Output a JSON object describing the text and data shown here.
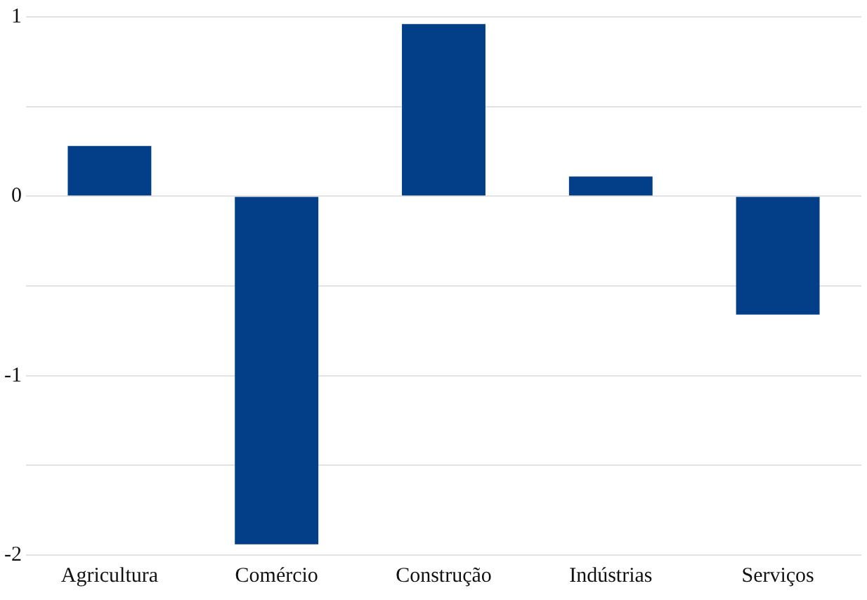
{
  "chart_data": {
    "type": "bar",
    "categories": [
      "Agricultura",
      "Comércio",
      "Construção",
      "Indústrias",
      "Serviços"
    ],
    "values": [
      0.28,
      -1.94,
      0.96,
      0.11,
      -0.66
    ],
    "color": "#023f88",
    "ylim": [
      -2,
      1
    ],
    "yticks": [
      -2,
      {
        "value": -1.5,
        "label": null
      },
      -1,
      {
        "value": -0.5,
        "label": null
      },
      0,
      {
        "value": 0.5,
        "label": null
      },
      1
    ],
    "grid": "y",
    "legend": false
  }
}
